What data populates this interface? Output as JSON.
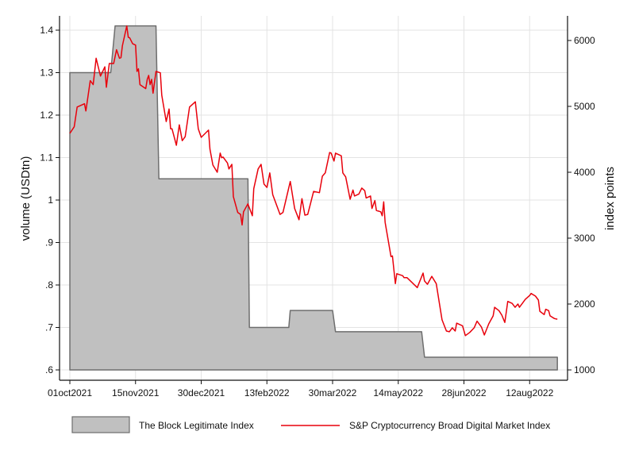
{
  "chart_data": {
    "type": "area+line",
    "grid": true,
    "legend_position": "bottom",
    "xaxis": {
      "ticks": [
        "2021-10-01",
        "2021-11-15",
        "2021-12-30",
        "2022-02-13",
        "2022-03-30",
        "2022-05-14",
        "2022-06-28",
        "2022-08-12"
      ],
      "tick_labels": [
        "01oct2021",
        "15nov2021",
        "30dec2021",
        "13feb2022",
        "30mar2022",
        "14may2022",
        "28jun2022",
        "12aug2022"
      ]
    },
    "yaxis_left": {
      "label": "volume (USDtn)",
      "range": [
        0.6,
        1.4
      ],
      "ticks": [
        0.6,
        0.7,
        0.8,
        0.9,
        1.0,
        1.1,
        1.2,
        1.3,
        1.4
      ],
      "tick_labels": [
        ".6",
        ".7",
        ".8",
        ".9",
        "1",
        "1.1",
        "1.2",
        "1.3",
        "1.4"
      ]
    },
    "yaxis_right": {
      "label": "index points",
      "range": [
        1000,
        6000
      ],
      "ticks": [
        1000,
        2000,
        3000,
        4000,
        5000,
        6000
      ],
      "tick_labels": [
        "1000",
        "2000",
        "3000",
        "4000",
        "5000",
        "6000"
      ]
    },
    "series": [
      {
        "name": "The Block Legitimate Index",
        "kind": "step-area",
        "axis": "left",
        "color": "#c0c0c0",
        "edge_color": "#6e6e6e",
        "periods": [
          {
            "start": "2021-10-01",
            "end": "2021-10-29",
            "value": 1.3
          },
          {
            "start": "2021-11-01",
            "end": "2021-11-29",
            "value": 1.41
          },
          {
            "start": "2021-12-01",
            "end": "2021-12-31",
            "value": 1.05
          },
          {
            "start": "2022-01-01",
            "end": "2022-01-31",
            "value": 1.05
          },
          {
            "start": "2022-02-01",
            "end": "2022-02-28",
            "value": 0.7
          },
          {
            "start": "2022-03-01",
            "end": "2022-03-30",
            "value": 0.74
          },
          {
            "start": "2022-04-01",
            "end": "2022-04-30",
            "value": 0.69
          },
          {
            "start": "2022-05-01",
            "end": "2022-05-30",
            "value": 0.69
          },
          {
            "start": "2022-06-01",
            "end": "2022-06-30",
            "value": 0.63
          },
          {
            "start": "2022-07-01",
            "end": "2022-07-31",
            "value": 0.63
          },
          {
            "start": "2022-08-01",
            "end": "2022-08-31",
            "value": 0.63
          }
        ]
      },
      {
        "name": "S&P Cryptocurrency Broad Digital Market Index",
        "kind": "line",
        "axis": "right",
        "color": "#e8000b",
        "x": [
          "2021-10-01",
          "2021-10-04",
          "2021-10-06",
          "2021-10-08",
          "2021-10-11",
          "2021-10-12",
          "2021-10-15",
          "2021-10-17",
          "2021-10-19",
          "2021-10-22",
          "2021-10-25",
          "2021-10-26",
          "2021-10-28",
          "2021-10-31",
          "2021-11-02",
          "2021-11-04",
          "2021-11-05",
          "2021-11-06",
          "2021-11-09",
          "2021-11-10",
          "2021-11-11",
          "2021-11-13",
          "2021-11-15",
          "2021-11-16",
          "2021-11-17",
          "2021-11-18",
          "2021-11-22",
          "2021-11-23",
          "2021-11-24",
          "2021-11-25",
          "2021-11-26",
          "2021-11-27",
          "2021-11-29",
          "2021-12-02",
          "2021-12-03",
          "2021-12-06",
          "2021-12-08",
          "2021-12-09",
          "2021-12-10",
          "2021-12-13",
          "2021-12-15",
          "2021-12-17",
          "2021-12-19",
          "2021-12-22",
          "2021-12-26",
          "2021-12-28",
          "2021-12-30",
          "2022-01-04",
          "2022-01-05",
          "2022-01-07",
          "2022-01-10",
          "2022-01-12",
          "2022-01-13",
          "2022-01-14",
          "2022-01-17",
          "2022-01-18",
          "2022-01-20",
          "2022-01-21",
          "2022-01-24",
          "2022-01-26",
          "2022-01-27",
          "2022-01-28",
          "2022-01-31",
          "2022-02-03",
          "2022-02-04",
          "2022-02-07",
          "2022-02-09",
          "2022-02-11",
          "2022-02-13",
          "2022-02-15",
          "2022-02-17",
          "2022-02-22",
          "2022-02-24",
          "2022-03-01",
          "2022-03-04",
          "2022-03-07",
          "2022-03-09",
          "2022-03-11",
          "2022-03-13",
          "2022-03-17",
          "2022-03-21",
          "2022-03-23",
          "2022-03-25",
          "2022-03-28",
          "2022-03-29",
          "2022-03-31",
          "2022-04-01",
          "2022-04-05",
          "2022-04-06",
          "2022-04-08",
          "2022-04-11",
          "2022-04-13",
          "2022-04-14",
          "2022-04-17",
          "2022-04-19",
          "2022-04-21",
          "2022-04-22",
          "2022-04-25",
          "2022-04-26",
          "2022-04-28",
          "2022-04-29",
          "2022-05-02",
          "2022-05-03",
          "2022-05-04",
          "2022-05-05",
          "2022-05-09",
          "2022-05-10",
          "2022-05-12",
          "2022-05-13",
          "2022-05-17",
          "2022-05-18",
          "2022-05-20",
          "2022-05-27",
          "2022-05-31",
          "2022-06-01",
          "2022-06-03",
          "2022-06-06",
          "2022-06-09",
          "2022-06-13",
          "2022-06-16",
          "2022-06-18",
          "2022-06-20",
          "2022-06-22",
          "2022-06-23",
          "2022-06-27",
          "2022-06-29",
          "2022-07-02",
          "2022-07-05",
          "2022-07-07",
          "2022-07-10",
          "2022-07-12",
          "2022-07-15",
          "2022-07-18",
          "2022-07-19",
          "2022-07-22",
          "2022-07-24",
          "2022-07-26",
          "2022-07-28",
          "2022-07-31",
          "2022-08-02",
          "2022-08-04",
          "2022-08-05",
          "2022-08-08",
          "2022-08-09",
          "2022-08-12",
          "2022-08-13",
          "2022-08-16",
          "2022-08-18",
          "2022-08-19",
          "2022-08-22",
          "2022-08-23",
          "2022-08-25",
          "2022-08-26",
          "2022-08-29",
          "2022-08-31"
        ],
        "y": [
          4590,
          4690,
          4990,
          5010,
          5040,
          4930,
          5390,
          5330,
          5730,
          5460,
          5600,
          5290,
          5650,
          5650,
          5860,
          5730,
          5740,
          5920,
          6220,
          6050,
          6040,
          5950,
          5930,
          5530,
          5570,
          5330,
          5270,
          5410,
          5470,
          5330,
          5410,
          5200,
          5530,
          5510,
          5170,
          4770,
          4960,
          4660,
          4660,
          4410,
          4720,
          4480,
          4540,
          4990,
          5070,
          4660,
          4530,
          4640,
          4350,
          4110,
          4000,
          4290,
          4220,
          4230,
          4140,
          4050,
          4120,
          3630,
          3390,
          3360,
          3200,
          3400,
          3520,
          3340,
          3750,
          4050,
          4120,
          3820,
          3770,
          3990,
          3660,
          3360,
          3390,
          3860,
          3450,
          3280,
          3600,
          3350,
          3360,
          3710,
          3690,
          3940,
          3990,
          4300,
          4290,
          4170,
          4290,
          4250,
          3990,
          3930,
          3590,
          3730,
          3640,
          3670,
          3760,
          3720,
          3610,
          3640,
          3450,
          3570,
          3420,
          3400,
          3340,
          3550,
          3240,
          2720,
          2730,
          2310,
          2460,
          2430,
          2400,
          2400,
          2250,
          2470,
          2350,
          2300,
          2420,
          2310,
          1760,
          1590,
          1580,
          1640,
          1590,
          1710,
          1670,
          1520,
          1570,
          1640,
          1740,
          1650,
          1530,
          1700,
          1820,
          1950,
          1900,
          1830,
          1720,
          2040,
          2010,
          1950,
          2000,
          1950,
          2040,
          2070,
          2130,
          2160,
          2120,
          2060,
          1890,
          1840,
          1920,
          1900,
          1820,
          1780,
          1770
        ]
      }
    ]
  }
}
